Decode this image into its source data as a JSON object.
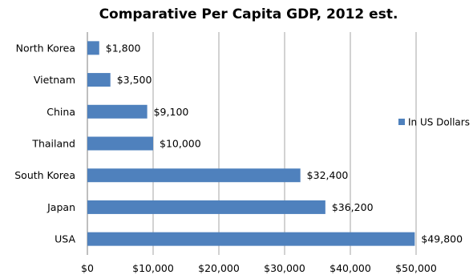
{
  "chart_data": {
    "type": "bar",
    "orientation": "horizontal",
    "title": "Comparative Per Capita GDP, 2012 est.",
    "xlabel": "",
    "ylabel": "",
    "categories": [
      "North Korea",
      "Vietnam",
      "China",
      "Thailand",
      "South Korea",
      "Japan",
      "USA"
    ],
    "series": [
      {
        "name": "In US Dollars",
        "values": [
          1800,
          3500,
          9100,
          10000,
          32400,
          36200,
          49800
        ],
        "data_labels": [
          "$1,800",
          "$3,500",
          "$9,100",
          "$10,000",
          "$32,400",
          "$36,200",
          "$49,800"
        ],
        "color": "#4f81bd"
      }
    ],
    "xlim": [
      0,
      50000
    ],
    "x_ticks": [
      0,
      10000,
      20000,
      30000,
      40000,
      50000
    ],
    "x_tick_labels": [
      "$0",
      "$10,000",
      "$20,000",
      "$30,000",
      "$40,000",
      "$50,000"
    ],
    "grid": "vertical",
    "legend": "right"
  }
}
